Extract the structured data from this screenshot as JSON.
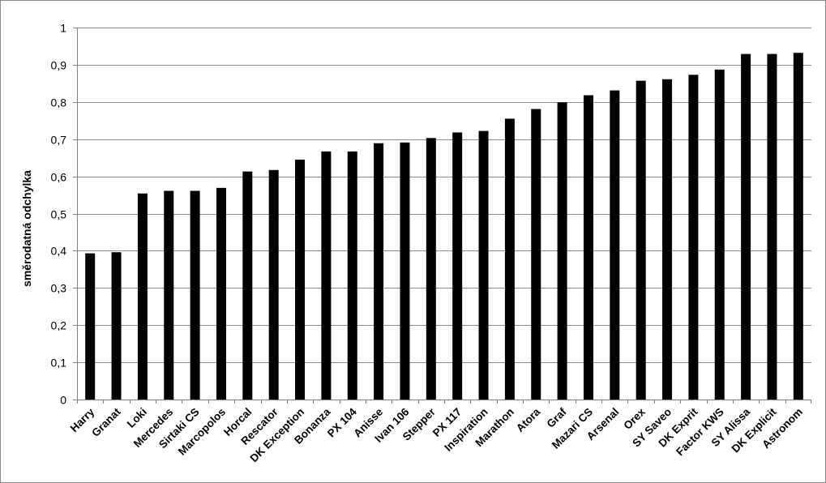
{
  "chart_data": {
    "type": "bar",
    "title": "",
    "xlabel": "",
    "ylabel": "směrodatná odchylka",
    "ylim": [
      0,
      1
    ],
    "yticks": [
      "0",
      "0,1",
      "0,2",
      "0,3",
      "0,4",
      "0,5",
      "0,6",
      "0,7",
      "0,8",
      "0,9",
      "1"
    ],
    "grid": true,
    "legend": "none",
    "bar_color": "#000000",
    "grid_color": "#8c8c8c",
    "categories": [
      "Harry",
      "Granat",
      "Loki",
      "Mercedes",
      "Sirtaki CS",
      "Marcopolos",
      "Horcal",
      "Rescator",
      "DK Exception",
      "Bonanza",
      "PX 104",
      "Anisse",
      "Ivan 106",
      "Stepper",
      "PX 117",
      "Inspiration",
      "Marathon",
      "Atora",
      "Graf",
      "Mazari CS",
      "Arsenal",
      "Orex",
      "SY Saveo",
      "DK Exprit",
      "Factor KWS",
      "SY Alissa",
      "DK Explicit",
      "Astronom"
    ],
    "values": [
      0.393,
      0.396,
      0.554,
      0.561,
      0.561,
      0.569,
      0.613,
      0.617,
      0.645,
      0.667,
      0.667,
      0.689,
      0.691,
      0.703,
      0.718,
      0.722,
      0.755,
      0.781,
      0.799,
      0.818,
      0.831,
      0.857,
      0.861,
      0.873,
      0.887,
      0.929,
      0.929,
      0.932
    ]
  }
}
